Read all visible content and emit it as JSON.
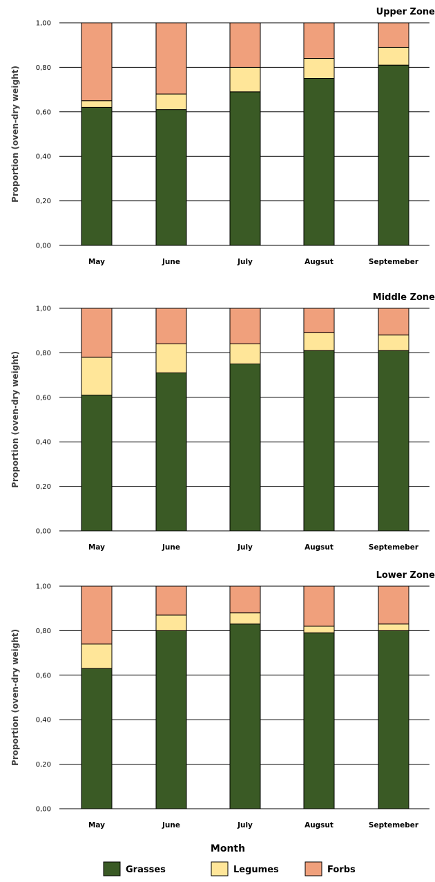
{
  "colors": {
    "Grasses": "#3a5a25",
    "Legumes": "#ffe699",
    "Forbs": "#f0a07c"
  },
  "chart_data": [
    {
      "type": "bar",
      "stacked": true,
      "title": "Upper Zone",
      "ylabel": "Proportion (oven-dry weight)",
      "ylim": [
        0,
        1
      ],
      "yticks": [
        "0,00",
        "0,20",
        "0,40",
        "0,60",
        "0,80",
        "1,00"
      ],
      "categories": [
        "May",
        "June",
        "July",
        "Augsut",
        "Septemeber"
      ],
      "series": [
        {
          "name": "Grasses",
          "values": [
            0.62,
            0.61,
            0.69,
            0.75,
            0.81
          ]
        },
        {
          "name": "Legumes",
          "values": [
            0.03,
            0.07,
            0.11,
            0.09,
            0.08
          ]
        },
        {
          "name": "Forbs",
          "values": [
            0.35,
            0.32,
            0.2,
            0.16,
            0.11
          ]
        }
      ]
    },
    {
      "type": "bar",
      "stacked": true,
      "title": "Middle Zone",
      "ylabel": "Proportion (oven-dry weight)",
      "ylim": [
        0,
        1
      ],
      "yticks": [
        "0,00",
        "0,20",
        "0,40",
        "0,60",
        "0,80",
        "1,00"
      ],
      "categories": [
        "May",
        "June",
        "July",
        "Augsut",
        "Septemeber"
      ],
      "series": [
        {
          "name": "Grasses",
          "values": [
            0.61,
            0.71,
            0.75,
            0.81,
            0.81
          ]
        },
        {
          "name": "Legumes",
          "values": [
            0.17,
            0.13,
            0.09,
            0.08,
            0.07
          ]
        },
        {
          "name": "Forbs",
          "values": [
            0.22,
            0.16,
            0.16,
            0.11,
            0.12
          ]
        }
      ]
    },
    {
      "type": "bar",
      "stacked": true,
      "title": "Lower Zone",
      "ylabel": "Proportion (oven-dry weight)",
      "ylim": [
        0,
        1
      ],
      "yticks": [
        "0,00",
        "0,20",
        "0,40",
        "0,60",
        "0,80",
        "1,00"
      ],
      "categories": [
        "May",
        "June",
        "July",
        "Augsut",
        "Septemeber"
      ],
      "series": [
        {
          "name": "Grasses",
          "values": [
            0.63,
            0.8,
            0.83,
            0.79,
            0.8
          ]
        },
        {
          "name": "Legumes",
          "values": [
            0.11,
            0.07,
            0.05,
            0.03,
            0.03
          ]
        },
        {
          "name": "Forbs",
          "values": [
            0.26,
            0.13,
            0.12,
            0.18,
            0.17
          ]
        }
      ]
    }
  ],
  "xlabel": "Month",
  "legend": {
    "placement": "bottom",
    "entries": [
      "Grasses",
      "Legumes",
      "Forbs"
    ]
  }
}
